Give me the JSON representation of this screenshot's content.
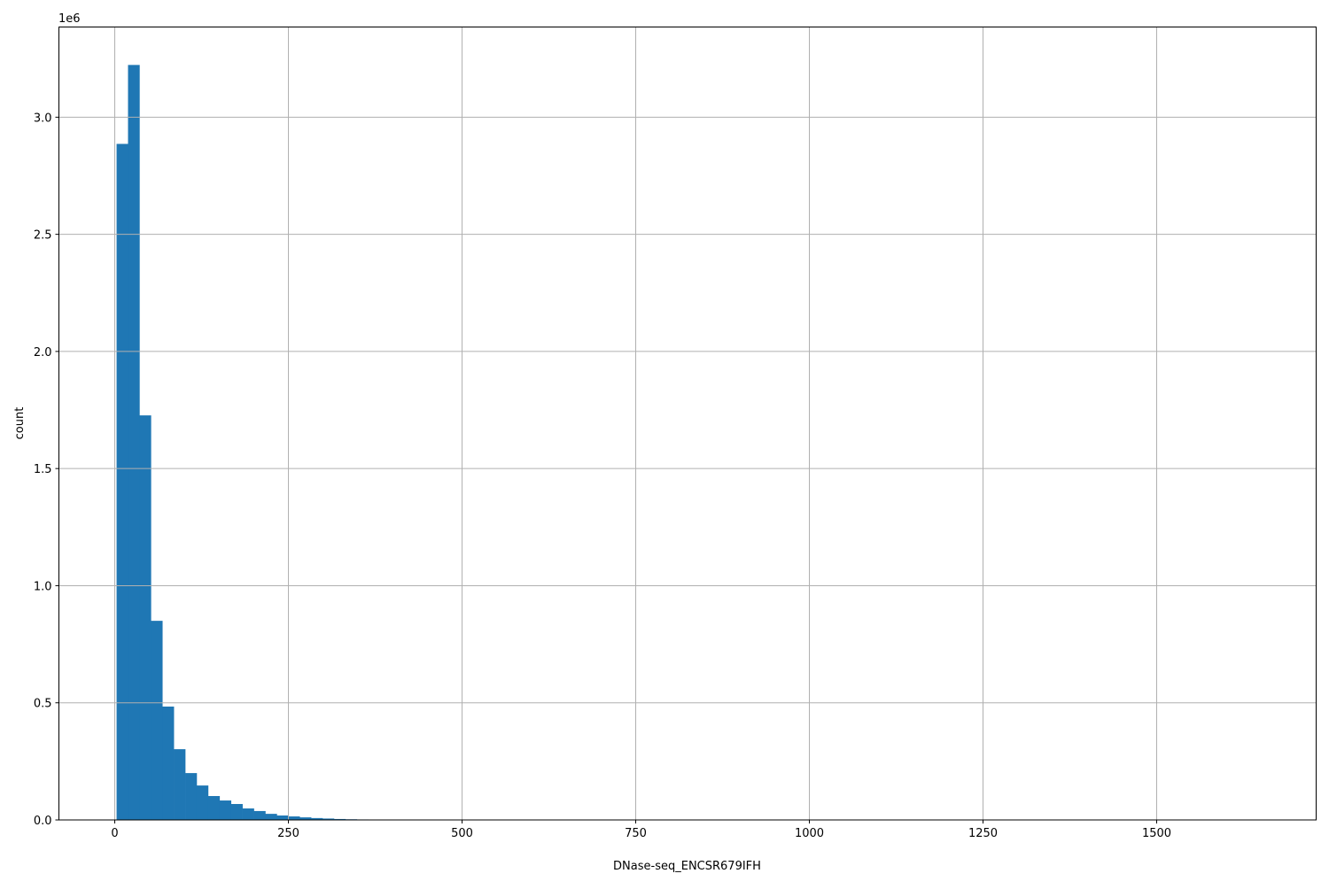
{
  "chart_data": {
    "type": "bar",
    "subtype": "histogram",
    "title": "",
    "xlabel": "DNase-seq_ENCSR679IFH",
    "ylabel": "count",
    "y_offset_label": "1e6",
    "bins": 100,
    "bin_range": [
      2.6,
      1650
    ],
    "counts": [
      2886000,
      3223000,
      1727000,
      850000,
      484000,
      302000,
      200000,
      147000,
      102000,
      83000,
      68000,
      49000,
      38000,
      26000,
      19000,
      15000,
      11000,
      8000,
      6000,
      4000,
      2800,
      2000,
      1400,
      1000,
      700,
      500,
      350,
      250,
      180,
      130,
      90,
      60,
      40,
      30,
      20,
      15,
      10,
      8,
      6,
      5,
      4,
      3,
      3,
      2,
      2,
      2,
      1,
      1,
      1,
      1,
      1,
      1,
      1,
      1,
      0,
      0,
      0,
      0,
      0,
      0,
      0,
      0,
      0,
      0,
      0,
      0,
      0,
      0,
      0,
      0,
      0,
      0,
      0,
      0,
      0,
      0,
      0,
      0,
      0,
      0,
      0,
      0,
      0,
      0,
      0,
      0,
      0,
      0,
      0,
      0,
      0,
      0,
      0,
      0,
      0,
      0,
      0,
      0,
      0,
      1
    ],
    "xlim": [
      -80.4,
      1729.6
    ],
    "ylim": [
      0,
      3385000
    ],
    "x_ticks": [
      0,
      250,
      500,
      750,
      1000,
      1250,
      1500
    ],
    "x_tick_labels": [
      "0",
      "250",
      "500",
      "750",
      "1000",
      "1250",
      "1500"
    ],
    "y_ticks": [
      0,
      500000,
      1000000,
      1500000,
      2000000,
      2500000,
      3000000
    ],
    "y_tick_labels": [
      "0.0",
      "0.5",
      "1.0",
      "1.5",
      "2.0",
      "2.5",
      "3.0"
    ],
    "grid": true,
    "legend": "none",
    "bar_color": "#1f77b4",
    "grid_color": "#b0b0b0"
  }
}
